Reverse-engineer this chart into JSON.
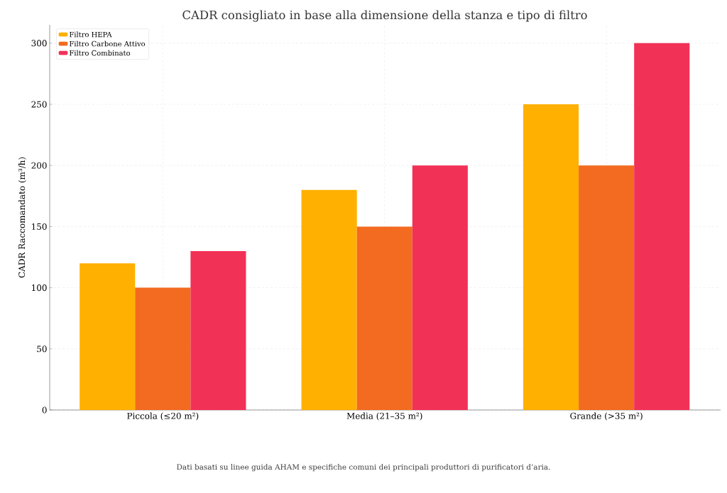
{
  "chart_data": {
    "type": "bar",
    "title": "CADR consigliato in base alla dimensione della stanza e tipo di filtro",
    "ylabel": "CADR Raccomandato (m³/h)",
    "categories": [
      "Piccola (≤20 m²)",
      "Media (21–35 m²)",
      "Grande (>35 m²)"
    ],
    "series": [
      {
        "name": "Filtro HEPA",
        "color": "#ffb000",
        "values": [
          120,
          180,
          250
        ]
      },
      {
        "name": "Filtro Carbone Attivo",
        "color": "#f26b21",
        "values": [
          100,
          150,
          200
        ]
      },
      {
        "name": "Filtro Combinato",
        "color": "#f23157",
        "values": [
          130,
          200,
          300
        ]
      }
    ],
    "ylim": [
      0,
      315
    ],
    "yticks": [
      0,
      50,
      100,
      150,
      200,
      250,
      300
    ],
    "grid": true,
    "legend": "top left",
    "annotations": [
      "Dati basati su linee guida AHAM e specifiche comuni dei principali produttori di purificatori d’aria."
    ]
  }
}
